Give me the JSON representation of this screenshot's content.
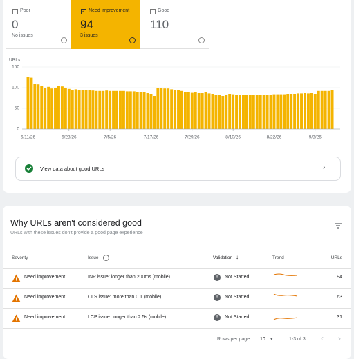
{
  "tabs": [
    {
      "label": "Poor",
      "value": "0",
      "note": "No issues"
    },
    {
      "label": "Need improvement",
      "value": "94",
      "note": "3 issues"
    },
    {
      "label": "Good",
      "value": "110"
    }
  ],
  "chart_data": {
    "type": "bar",
    "y_label": "URLs",
    "color": "#f4b400",
    "ylim": [
      0,
      150
    ],
    "yticks": [
      0,
      50,
      100,
      150
    ],
    "categories": [
      "6/11/26",
      null,
      null,
      null,
      null,
      null,
      null,
      null,
      null,
      null,
      null,
      null,
      "6/23/26",
      null,
      null,
      null,
      null,
      null,
      null,
      null,
      null,
      null,
      null,
      null,
      "7/5/26",
      null,
      null,
      null,
      null,
      null,
      null,
      null,
      null,
      null,
      null,
      null,
      "7/17/26",
      null,
      null,
      null,
      null,
      null,
      null,
      null,
      null,
      null,
      null,
      null,
      "7/29/26",
      null,
      null,
      null,
      null,
      null,
      null,
      null,
      null,
      null,
      null,
      null,
      "8/10/26",
      null,
      null,
      null,
      null,
      null,
      null,
      null,
      null,
      null,
      null,
      null,
      "8/22/26",
      null,
      null,
      null,
      null,
      null,
      null,
      null,
      null,
      null,
      null,
      null,
      "9/3/26",
      null,
      null,
      null,
      null,
      null
    ],
    "values": [
      125,
      124,
      110,
      108,
      105,
      100,
      102,
      98,
      100,
      105,
      103,
      100,
      97,
      95,
      96,
      95,
      94,
      94,
      94,
      93,
      92,
      92,
      92,
      93,
      92,
      92,
      92,
      92,
      92,
      91,
      91,
      91,
      90,
      90,
      90,
      88,
      85,
      80,
      100,
      100,
      98,
      98,
      96,
      95,
      94,
      92,
      90,
      90,
      89,
      90,
      88,
      88,
      90,
      86,
      85,
      83,
      82,
      80,
      82,
      85,
      84,
      83,
      83,
      82,
      82,
      83,
      82,
      82,
      82,
      82,
      83,
      83,
      84,
      84,
      84,
      84,
      85,
      85,
      85,
      86,
      86,
      87,
      86,
      88,
      85,
      92,
      92,
      92,
      92,
      94
    ]
  },
  "good_link": "View data about good URLs",
  "section": {
    "title": "Why URLs aren't considered good",
    "subtitle": "URLs with these issues don't provide a good page experience"
  },
  "table": {
    "headers": [
      "Severity",
      "Issue",
      "Validation",
      "Trend",
      "URLs"
    ],
    "rows": [
      [
        "Need improvement",
        "INP issue: longer than 200ms (mobile)",
        "Not Started",
        94
      ],
      [
        "Need improvement",
        "CLS issue: more than 0.1 (mobile)",
        "Not Started",
        63
      ],
      [
        "Need improvement",
        "LCP issue: longer than 2.5s (mobile)",
        "Not Started",
        31
      ]
    ]
  },
  "footer": {
    "rows_label": "Rows per page:",
    "rows_value": "10",
    "range": "1-3 of 3"
  }
}
